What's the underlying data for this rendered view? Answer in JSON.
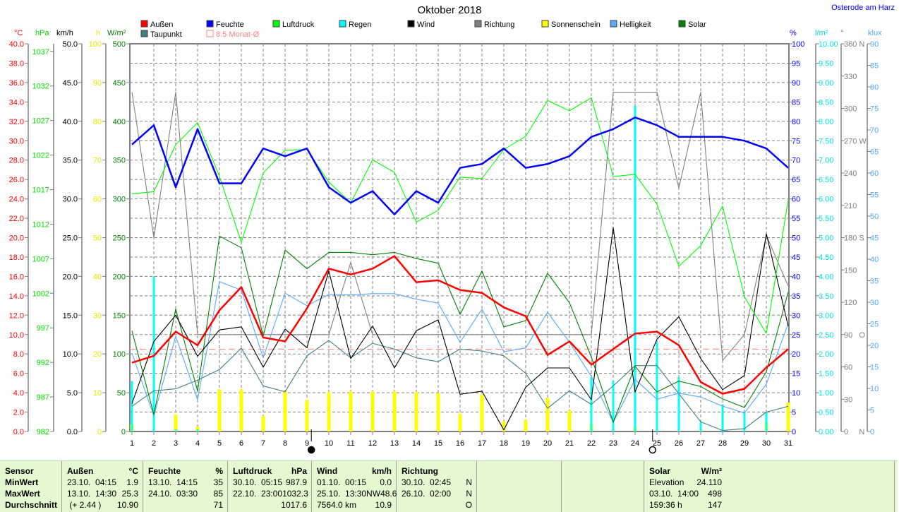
{
  "header": {
    "title": "Oktober 2018",
    "location": "Osterode am Harz"
  },
  "legend": [
    {
      "label": "Außen",
      "color": "#ff0000"
    },
    {
      "label": "Feuchte",
      "color": "#0000ff"
    },
    {
      "label": "Luftdruck",
      "color": "#00ff00"
    },
    {
      "label": "Regen",
      "color": "#00ffff"
    },
    {
      "label": "Wind",
      "color": "#000000"
    },
    {
      "label": "Richtung",
      "color": "#808080"
    },
    {
      "label": "Sonnenschein",
      "color": "#ffff00"
    },
    {
      "label": "Helligkeit",
      "color": "#55aaff"
    },
    {
      "label": "Solar",
      "color": "#008000"
    },
    {
      "label": "Taupunkt",
      "color": "#408080"
    }
  ],
  "month_avg": {
    "label": "8.5 Monat-Ø",
    "value": 8.5,
    "color": "#ff8080"
  },
  "axes": {
    "left": [
      {
        "unit": "°C",
        "color": "#ff0000",
        "min": 0,
        "max": 40,
        "labels": [
          "40.0",
          "38.0",
          "36.0",
          "34.0",
          "32.0",
          "30.0",
          "28.0",
          "26.0",
          "24.0",
          "22.0",
          "20.0",
          "18.0",
          "16.0",
          "14.0",
          "12.0",
          "10.0",
          "8.0",
          "6.0",
          "4.0",
          "2.0",
          "0.0"
        ]
      },
      {
        "unit": "hPa",
        "color": "#00dd00",
        "min": 982,
        "max": 1038.1,
        "labels": [
          "1037",
          "1032",
          "1027",
          "1022",
          "1017",
          "1012",
          "1007",
          "1002",
          "997",
          "992",
          "987",
          "982"
        ]
      },
      {
        "unit": "km/h",
        "color": "#000000",
        "min": 0,
        "max": 50,
        "labels": [
          "50.0",
          "45.0",
          "40.0",
          "35.0",
          "30.0",
          "25.0",
          "20.0",
          "15.0",
          "10.0",
          "5.0",
          "0.0"
        ]
      },
      {
        "unit": "h",
        "color": "#e6e600",
        "min": 0,
        "max": 100,
        "labels": [
          "100",
          "90",
          "80",
          "70",
          "60",
          "50",
          "40",
          "30",
          "20",
          "10",
          "0"
        ]
      },
      {
        "unit": "W/m²",
        "color": "#008000",
        "min": 0,
        "max": 500,
        "labels": [
          "500",
          "450",
          "400",
          "350",
          "300",
          "250",
          "200",
          "150",
          "100",
          "50",
          "0"
        ]
      }
    ],
    "right": [
      {
        "unit": "%",
        "color": "#0000ff",
        "min": 0,
        "max": 100,
        "labels": [
          "100",
          "95",
          "90",
          "85",
          "80",
          "75",
          "70",
          "65",
          "60",
          "55",
          "50",
          "45",
          "40",
          "35",
          "30",
          "25",
          "20",
          "15",
          "10",
          "5",
          "0"
        ]
      },
      {
        "unit": "l/m²",
        "color": "#00e0e0",
        "min": 0,
        "max": 10,
        "labels": [
          "10.00",
          "9.50",
          "9.00",
          "8.50",
          "8.00",
          "7.50",
          "7.00",
          "6.50",
          "6.00",
          "5.50",
          "5.00",
          "4.50",
          "4.00",
          "3.50",
          "3.00",
          "2.50",
          "2.00",
          "1.50",
          "1.00",
          "0.50",
          "0.00"
        ]
      },
      {
        "unit": "°",
        "color": "#808080",
        "min": 0,
        "max": 360,
        "labels": [
          "360 N",
          "330",
          "300",
          "270 W",
          "240",
          "210",
          "180 S",
          "150",
          "120",
          "90   O",
          "60",
          "30",
          "0     N"
        ]
      },
      {
        "unit": "klux",
        "color": "#55aaff",
        "min": 0,
        "max": 90,
        "labels": [
          "90",
          "85",
          "80",
          "75",
          "70",
          "65",
          "60",
          "55",
          "50",
          "45",
          "40",
          "35",
          "30",
          "25",
          "20",
          "15",
          "10",
          "5",
          "0"
        ]
      }
    ]
  },
  "chart_data": {
    "type": "line",
    "title": "Oktober 2018",
    "x": [
      1,
      2,
      3,
      4,
      5,
      6,
      7,
      8,
      9,
      10,
      11,
      12,
      13,
      14,
      15,
      16,
      17,
      18,
      19,
      20,
      21,
      22,
      23,
      24,
      25,
      26,
      27,
      28,
      29,
      30,
      31
    ],
    "xlim": [
      1,
      31
    ],
    "grid": true,
    "legend_position": "top",
    "series": [
      {
        "name": "Sonnenschein",
        "kind": "bar",
        "axis": "h",
        "color": "#ffff00",
        "values": [
          2,
          0,
          4.4,
          1.3,
          10.9,
          10.9,
          4,
          10.4,
          8.2,
          10.2,
          10.4,
          10.4,
          10.4,
          10.2,
          10,
          4.6,
          9.6,
          2.7,
          3.1,
          8.7,
          5.5,
          2,
          0,
          1.3,
          0,
          0.2,
          0.4,
          0,
          0,
          2.4,
          7.5
        ]
      },
      {
        "name": "Regen",
        "kind": "bar",
        "axis": "l/m²",
        "color": "#00ffff",
        "values": [
          1.3,
          4.0,
          0.05,
          0.05,
          0,
          0,
          0,
          0,
          0,
          0,
          0,
          0,
          0,
          0,
          0,
          0,
          0,
          0,
          0,
          0,
          0,
          1.4,
          1.3,
          8.4,
          2.3,
          1.4,
          0.25,
          0.7,
          0.5,
          0.5,
          0
        ]
      },
      {
        "name": "Richtung",
        "kind": "line",
        "axis": "°",
        "color": "#808080",
        "values": [
          315,
          180,
          315,
          90,
          90,
          90,
          90,
          90,
          90,
          90,
          157,
          90,
          90,
          90,
          90,
          90,
          90,
          90,
          90,
          90,
          90,
          90,
          315,
          315,
          315,
          226,
          315,
          66,
          90,
          182,
          135
        ]
      },
      {
        "name": "Taupunkt",
        "kind": "line",
        "axis": "°C",
        "color": "#408080",
        "values": [
          2.6,
          4.2,
          4.4,
          5.3,
          6.4,
          8.6,
          4.7,
          4.1,
          7.8,
          9.4,
          7.6,
          9.1,
          8.5,
          7.6,
          7.2,
          8.5,
          8.3,
          7.8,
          6.0,
          2.4,
          4.2,
          2.8,
          4.7,
          6.8,
          6.8,
          3.9,
          1.0,
          0.1,
          0.3,
          2.0,
          2.6
        ]
      },
      {
        "name": "Helligkeit",
        "kind": "line",
        "axis": "klux",
        "color": "#55aaff",
        "values": [
          18.2,
          3.6,
          22.1,
          7.4,
          34.8,
          32.8,
          17.1,
          32.1,
          29.2,
          31.8,
          31.7,
          32,
          32,
          30.7,
          29.8,
          20.7,
          28.4,
          18.5,
          19.4,
          27.7,
          20.7,
          12.8,
          2.1,
          12.1,
          7.5,
          8.9,
          8,
          5.9,
          4.3,
          11,
          25.1
        ]
      },
      {
        "name": "Solar",
        "kind": "line",
        "axis": "W/m²",
        "color": "#008000",
        "values": [
          130,
          22,
          158,
          52,
          252,
          237,
          123,
          234,
          210,
          231,
          231,
          228,
          231,
          223,
          217,
          151,
          207,
          135,
          143,
          204,
          166,
          96,
          12,
          84,
          51,
          65,
          58,
          42,
          31,
          77,
          180
        ]
      },
      {
        "name": "Wind",
        "kind": "line",
        "axis": "km/h",
        "color": "#000000",
        "values": [
          3.6,
          11.6,
          15,
          9.7,
          13.1,
          13.5,
          8.3,
          13.2,
          10.8,
          20.7,
          9.4,
          13.6,
          8.2,
          13,
          14.4,
          4.8,
          5.2,
          0.2,
          5.7,
          8.2,
          8.2,
          4.1,
          26.3,
          5.1,
          11.9,
          14.8,
          9.4,
          5.4,
          7.2,
          25.5,
          13.6
        ]
      },
      {
        "name": "Luftdruck",
        "kind": "line",
        "axis": "hPa",
        "color": "#00ff00",
        "values": [
          1016.4,
          1016.7,
          1023.5,
          1026.7,
          1018.9,
          1009.4,
          1019.4,
          1022.7,
          1022.8,
          1018.1,
          1015.1,
          1021.3,
          1019.5,
          1012.3,
          1014,
          1018.8,
          1018.6,
          1022.8,
          1024.7,
          1029.9,
          1028.4,
          1030.3,
          1018.9,
          1019.2,
          1014.9,
          1005.9,
          1008.9,
          1014.6,
          1001.5,
          996.2,
          1015.5
        ]
      },
      {
        "name": "Außen",
        "kind": "line",
        "axis": "°C",
        "color": "#ff0000",
        "values": [
          7.1,
          7.8,
          10.3,
          8.9,
          12.5,
          14.9,
          9.7,
          9.3,
          12.7,
          16.8,
          16.2,
          16.8,
          18.1,
          15.4,
          15.6,
          14.6,
          14.3,
          12.8,
          11.9,
          7.9,
          9.3,
          6.9,
          8.5,
          10.1,
          10.3,
          8.9,
          5.1,
          3.9,
          4.4,
          6.6,
          8.5
        ]
      },
      {
        "name": "Feuchte",
        "kind": "line",
        "axis": "%",
        "color": "#0000ff",
        "values": [
          74,
          79,
          63,
          78,
          64,
          64,
          73,
          71,
          73,
          63,
          59,
          62,
          56,
          62,
          59,
          68,
          69,
          73,
          68,
          69,
          71,
          76,
          78,
          81,
          79,
          76,
          76,
          76,
          75,
          73,
          68
        ]
      }
    ],
    "moon_phases": [
      {
        "day": 9.2,
        "phase": "full-moon"
      },
      {
        "day": 24.8,
        "phase": "new-moon"
      }
    ]
  },
  "table": {
    "sensor": [
      "Sensor",
      "MinWert",
      "MaxWert",
      "Durchschnitt"
    ],
    "columns": [
      {
        "name": "Außen",
        "unit": "°C",
        "rows": [
          [
            "23.10.  04:15",
            "1.9"
          ],
          [
            "13.10.  14:30",
            "25.3"
          ],
          [
            " (+ 2.44 )",
            "10.90"
          ]
        ]
      },
      {
        "name": "Feuchte",
        "unit": "%",
        "rows": [
          [
            "13.10.  14:15",
            "35"
          ],
          [
            "24.10.  03:30",
            "85"
          ],
          [
            "",
            "71"
          ]
        ]
      },
      {
        "name": "Luftdruck",
        "unit": "hPa",
        "rows": [
          [
            "30.10.  05:15",
            "987.9"
          ],
          [
            "22.10.  23:00",
            "1032.3"
          ],
          [
            "",
            "1017.6"
          ]
        ]
      },
      {
        "name": "Wind",
        "unit": "km/h",
        "rows": [
          [
            "01.10.  00:15",
            "0.0"
          ],
          [
            "25.10.  13:30NW",
            "48.6"
          ],
          [
            "7564.0 km",
            "10.9"
          ]
        ]
      },
      {
        "name": "Richtung",
        "unit": "",
        "rows": [
          [
            "30.10.  02:45",
            "N"
          ],
          [
            "26.10.  02:00",
            "N"
          ],
          [
            "",
            "O"
          ]
        ]
      }
    ],
    "solar": {
      "name": "Solar",
      "unit": "W/m²",
      "rows": [
        [
          "Elevation",
          "24.110"
        ],
        [
          "03.10.  14:00",
          "498"
        ],
        [
          "159:36 h",
          "147"
        ]
      ]
    }
  }
}
